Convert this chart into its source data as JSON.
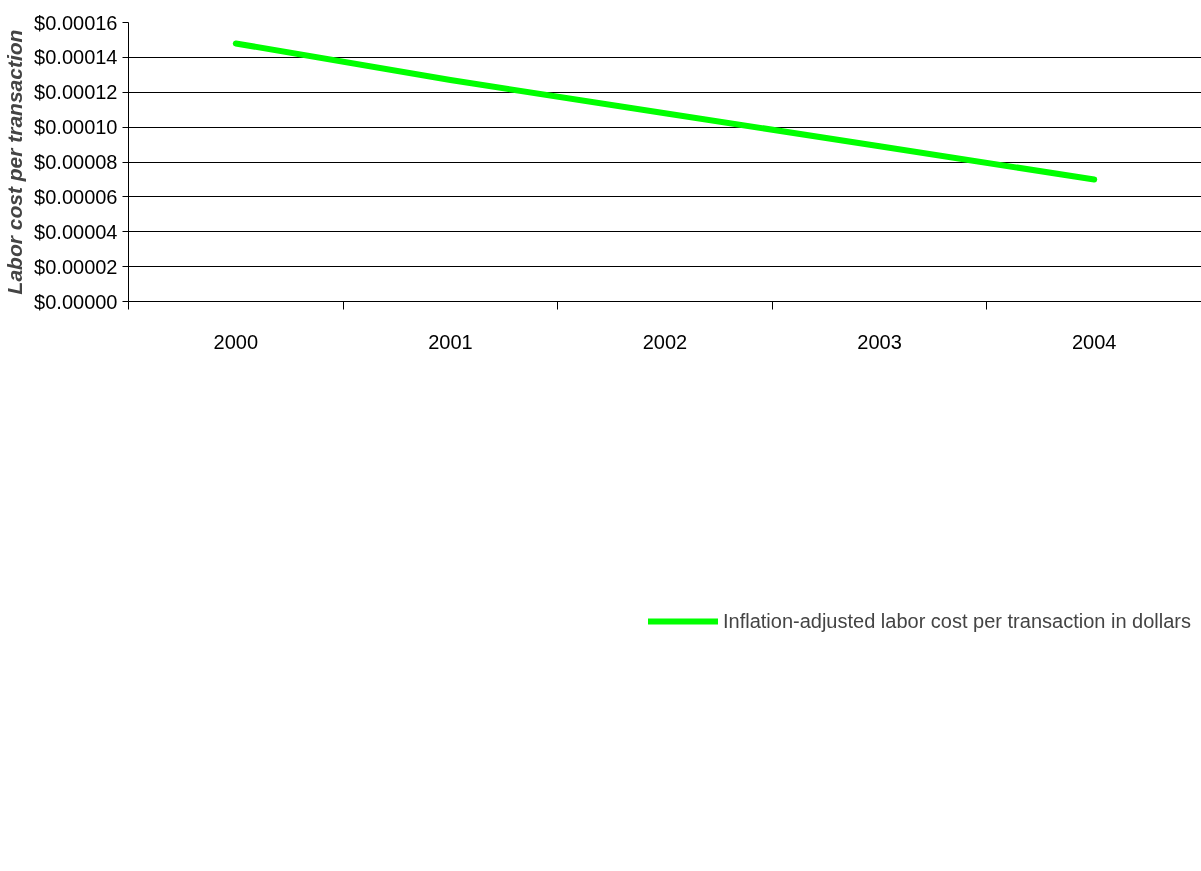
{
  "chart_data": {
    "type": "line",
    "ylabel": "Labor cost per transaction",
    "categories": [
      "2000",
      "2001",
      "2002",
      "2003",
      "2004"
    ],
    "series": [
      {
        "name": "Inflation-adjusted labor cost per transaction in dollars",
        "color": "#00ff00",
        "values": [
          0.000148,
          0.000127,
          0.000108,
          8.9e-05,
          7e-05
        ]
      }
    ],
    "ylim": [
      0,
      0.00016
    ],
    "yticks": [
      {
        "value": 0,
        "label": "$0.00000"
      },
      {
        "value": 2e-05,
        "label": "$0.00002"
      },
      {
        "value": 4e-05,
        "label": "$0.00004"
      },
      {
        "value": 6e-05,
        "label": "$0.00006"
      },
      {
        "value": 8e-05,
        "label": "$0.00008"
      },
      {
        "value": 0.0001,
        "label": "$0.00010"
      },
      {
        "value": 0.00012,
        "label": "$0.00012"
      },
      {
        "value": 0.00014,
        "label": "$0.00014"
      },
      {
        "value": 0.00016,
        "label": "$0.00016"
      }
    ],
    "grid": "y",
    "legend": "bottom",
    "marker": "none",
    "line_style": "solid"
  }
}
